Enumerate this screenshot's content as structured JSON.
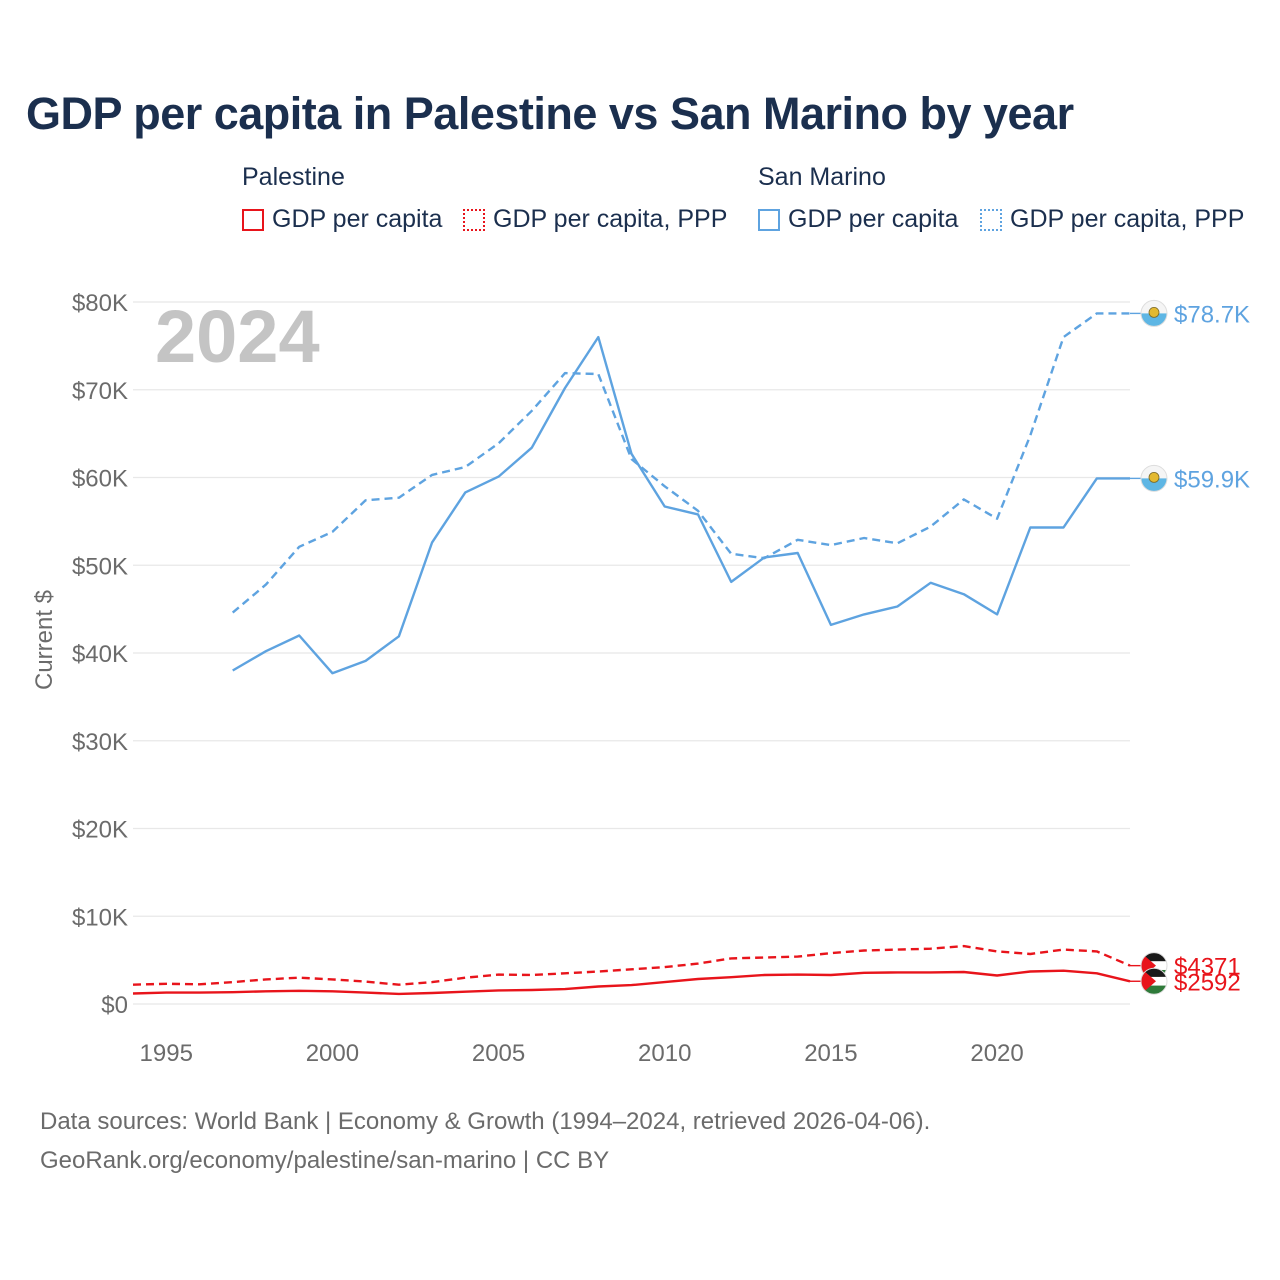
{
  "chart_data": {
    "type": "line",
    "title": "GDP per capita in Palestine vs San Marino by year",
    "year_watermark": "2024",
    "ylabel": "Current $",
    "xlabel": "",
    "xlim": [
      1994,
      2024
    ],
    "ylim": [
      0,
      80000
    ],
    "x_ticks": [
      1995,
      2000,
      2005,
      2010,
      2015,
      2020
    ],
    "y_ticks": [
      {
        "value": 0,
        "label": "$0"
      },
      {
        "value": 10000,
        "label": "$10K"
      },
      {
        "value": 20000,
        "label": "$20K"
      },
      {
        "value": 30000,
        "label": "$30K"
      },
      {
        "value": 40000,
        "label": "$40K"
      },
      {
        "value": 50000,
        "label": "$50K"
      },
      {
        "value": 60000,
        "label": "$60K"
      },
      {
        "value": 70000,
        "label": "$70K"
      },
      {
        "value": 80000,
        "label": "$80K"
      }
    ],
    "legend": {
      "groups": [
        {
          "name": "Palestine",
          "items": [
            "GDP per capita",
            "GDP per capita, PPP"
          ],
          "color": "#e8141b"
        },
        {
          "name": "San Marino",
          "items": [
            "GDP per capita",
            "GDP per capita, PPP"
          ],
          "color": "#5ea3e0"
        }
      ]
    },
    "series": [
      {
        "name": "San Marino GDP per capita, PPP",
        "country": "San Marino",
        "color": "#5ea3e0",
        "dashed": true,
        "x": [
          1997,
          1998,
          1999,
          2000,
          2001,
          2002,
          2003,
          2004,
          2005,
          2006,
          2007,
          2008,
          2009,
          2010,
          2011,
          2012,
          2013,
          2014,
          2015,
          2016,
          2017,
          2018,
          2019,
          2020,
          2021,
          2022,
          2023,
          2024
        ],
        "values": [
          44600,
          47800,
          52100,
          53800,
          57400,
          57700,
          60300,
          61200,
          63900,
          67600,
          71900,
          71800,
          62100,
          59000,
          56200,
          51300,
          50800,
          52900,
          52300,
          53100,
          52500,
          54400,
          57500,
          55300,
          64800,
          76000,
          78700,
          78700
        ],
        "end_label": "$78.7K"
      },
      {
        "name": "San Marino GDP per capita",
        "country": "San Marino",
        "color": "#5ea3e0",
        "dashed": false,
        "x": [
          1997,
          1998,
          1999,
          2000,
          2001,
          2002,
          2003,
          2004,
          2005,
          2006,
          2007,
          2008,
          2009,
          2010,
          2011,
          2012,
          2013,
          2014,
          2015,
          2016,
          2017,
          2018,
          2019,
          2020,
          2021,
          2022,
          2023,
          2024
        ],
        "values": [
          38000,
          40200,
          42000,
          37700,
          39100,
          41900,
          52600,
          58300,
          60100,
          63400,
          70200,
          76000,
          62700,
          56700,
          55800,
          48100,
          50900,
          51400,
          43200,
          44400,
          45300,
          48000,
          46700,
          44400,
          54300,
          54300,
          59900,
          59900
        ],
        "end_label": "$59.9K"
      },
      {
        "name": "Palestine GDP per capita, PPP",
        "country": "Palestine",
        "color": "#e8141b",
        "dashed": true,
        "x": [
          1994,
          1995,
          1996,
          1997,
          1998,
          1999,
          2000,
          2001,
          2002,
          2003,
          2004,
          2005,
          2006,
          2007,
          2008,
          2009,
          2010,
          2011,
          2012,
          2013,
          2014,
          2015,
          2016,
          2017,
          2018,
          2019,
          2020,
          2021,
          2022,
          2023,
          2024
        ],
        "values": [
          2200,
          2300,
          2250,
          2500,
          2800,
          3000,
          2800,
          2550,
          2200,
          2500,
          3000,
          3350,
          3300,
          3500,
          3700,
          3950,
          4200,
          4600,
          5200,
          5300,
          5400,
          5800,
          6100,
          6200,
          6300,
          6600,
          6000,
          5700,
          6200,
          6000,
          4371
        ],
        "end_label": "$4371"
      },
      {
        "name": "Palestine GDP per capita",
        "country": "Palestine",
        "color": "#e8141b",
        "dashed": false,
        "x": [
          1994,
          1995,
          1996,
          1997,
          1998,
          1999,
          2000,
          2001,
          2002,
          2003,
          2004,
          2005,
          2006,
          2007,
          2008,
          2009,
          2010,
          2011,
          2012,
          2013,
          2014,
          2015,
          2016,
          2017,
          2018,
          2019,
          2020,
          2021,
          2022,
          2023,
          2024
        ],
        "values": [
          1200,
          1300,
          1300,
          1350,
          1450,
          1500,
          1450,
          1300,
          1150,
          1250,
          1400,
          1550,
          1600,
          1700,
          2000,
          2150,
          2500,
          2850,
          3050,
          3300,
          3350,
          3300,
          3550,
          3600,
          3600,
          3650,
          3250,
          3700,
          3800,
          3500,
          2592
        ],
        "end_label": "$2592"
      }
    ]
  },
  "footer": {
    "source_line1": "Data sources: World Bank | Economy & Growth (1994–2024, retrieved 2026-04-06).",
    "source_line2": "GeoRank.org/economy/palestine/san-marino | CC BY"
  }
}
